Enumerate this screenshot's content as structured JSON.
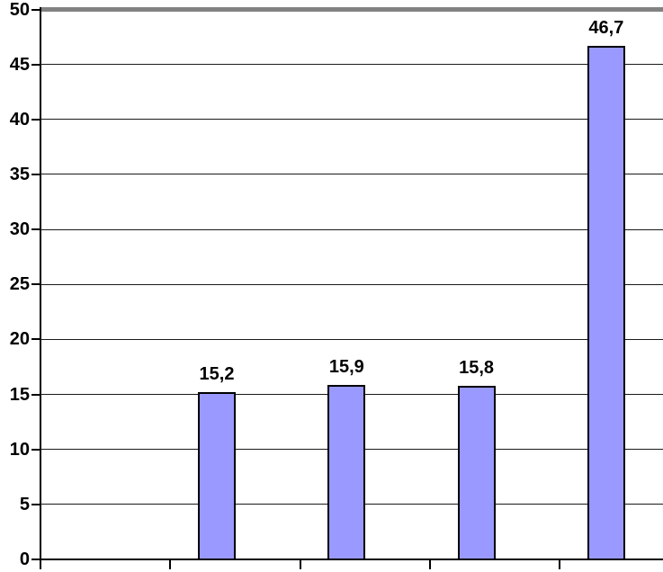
{
  "chart_data": {
    "type": "bar",
    "title": "",
    "xlabel": "",
    "ylabel": "",
    "categories": [
      "",
      "",
      "",
      ""
    ],
    "values": [
      15.2,
      15.9,
      15.8,
      46.7
    ],
    "value_labels": [
      "15,2",
      "15,9",
      "15,8",
      "46,7"
    ],
    "ylim": [
      0,
      50
    ],
    "y_tick_step": 5,
    "y_ticks": [
      0,
      5,
      10,
      15,
      20,
      25,
      30,
      35,
      40,
      45,
      50
    ],
    "y_tick_labels": [
      "0",
      "5",
      "10",
      "15",
      "20",
      "25",
      "30",
      "35",
      "40",
      "45",
      "50"
    ],
    "x_tick_labels": [],
    "x_tick_mark_count": 5,
    "grid": "horizontal",
    "legend_position": "none",
    "decimal_separator": ",",
    "colors": {
      "bar_fill": "#9999FF",
      "bar_border": "#000000",
      "axis": "#000000",
      "gridline": "#1A1A1A",
      "plot_top_border": "#828282",
      "background": "#FFFFFF",
      "text": "#000000"
    }
  }
}
